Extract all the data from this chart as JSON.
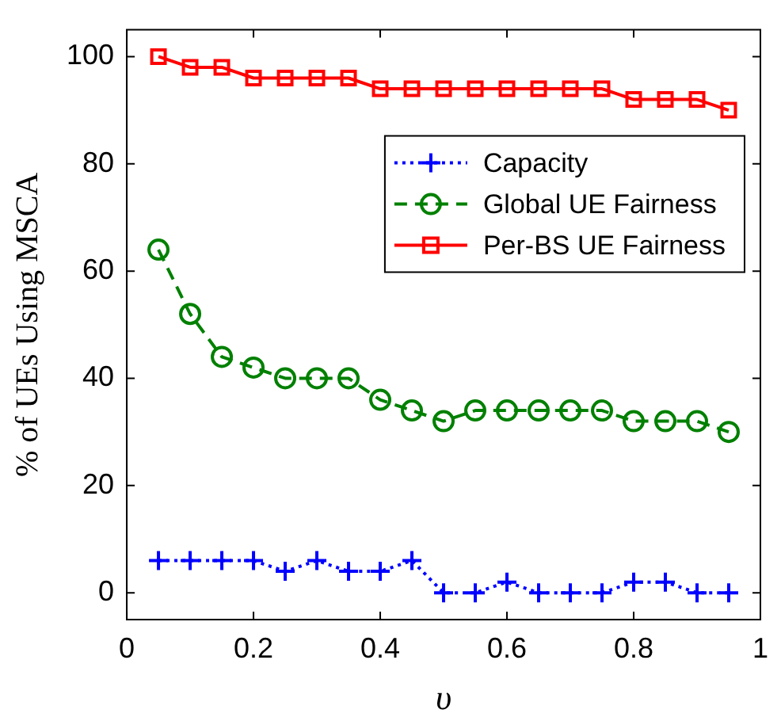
{
  "chart_data": {
    "type": "line",
    "xlabel": "υ",
    "ylabel": "% of UEs Using MSCA",
    "x": [
      0.05,
      0.1,
      0.15,
      0.2,
      0.25,
      0.3,
      0.35,
      0.4,
      0.45,
      0.5,
      0.55,
      0.6,
      0.65,
      0.7,
      0.75,
      0.8,
      0.85,
      0.9,
      0.95
    ],
    "series": [
      {
        "name": "Capacity",
        "color": "#0000ff",
        "marker": "cross",
        "line_style": "dotted",
        "values": [
          6,
          6,
          6,
          6,
          4,
          6,
          4,
          4,
          6,
          0,
          0,
          2,
          0,
          0,
          0,
          2,
          2,
          0,
          0
        ]
      },
      {
        "name": "Global UE Fairness",
        "color": "#008000",
        "marker": "circle",
        "line_style": "dashed",
        "values": [
          64,
          52,
          44,
          42,
          40,
          40,
          40,
          36,
          34,
          32,
          34,
          34,
          34,
          34,
          34,
          32,
          32,
          32,
          30
        ]
      },
      {
        "name": "Per-BS UE Fairness",
        "color": "#ff0000",
        "marker": "square",
        "line_style": "solid",
        "values": [
          100,
          98,
          98,
          96,
          96,
          96,
          96,
          94,
          94,
          94,
          94,
          94,
          94,
          94,
          94,
          92,
          92,
          92,
          90
        ]
      }
    ],
    "xlim": [
      0,
      1
    ],
    "xticks": [
      0,
      0.2,
      0.4,
      0.6,
      0.8,
      1
    ],
    "ylim": [
      -5,
      105
    ],
    "yticks": [
      0,
      20,
      40,
      60,
      80,
      100
    ],
    "grid": false,
    "legend": "right"
  }
}
